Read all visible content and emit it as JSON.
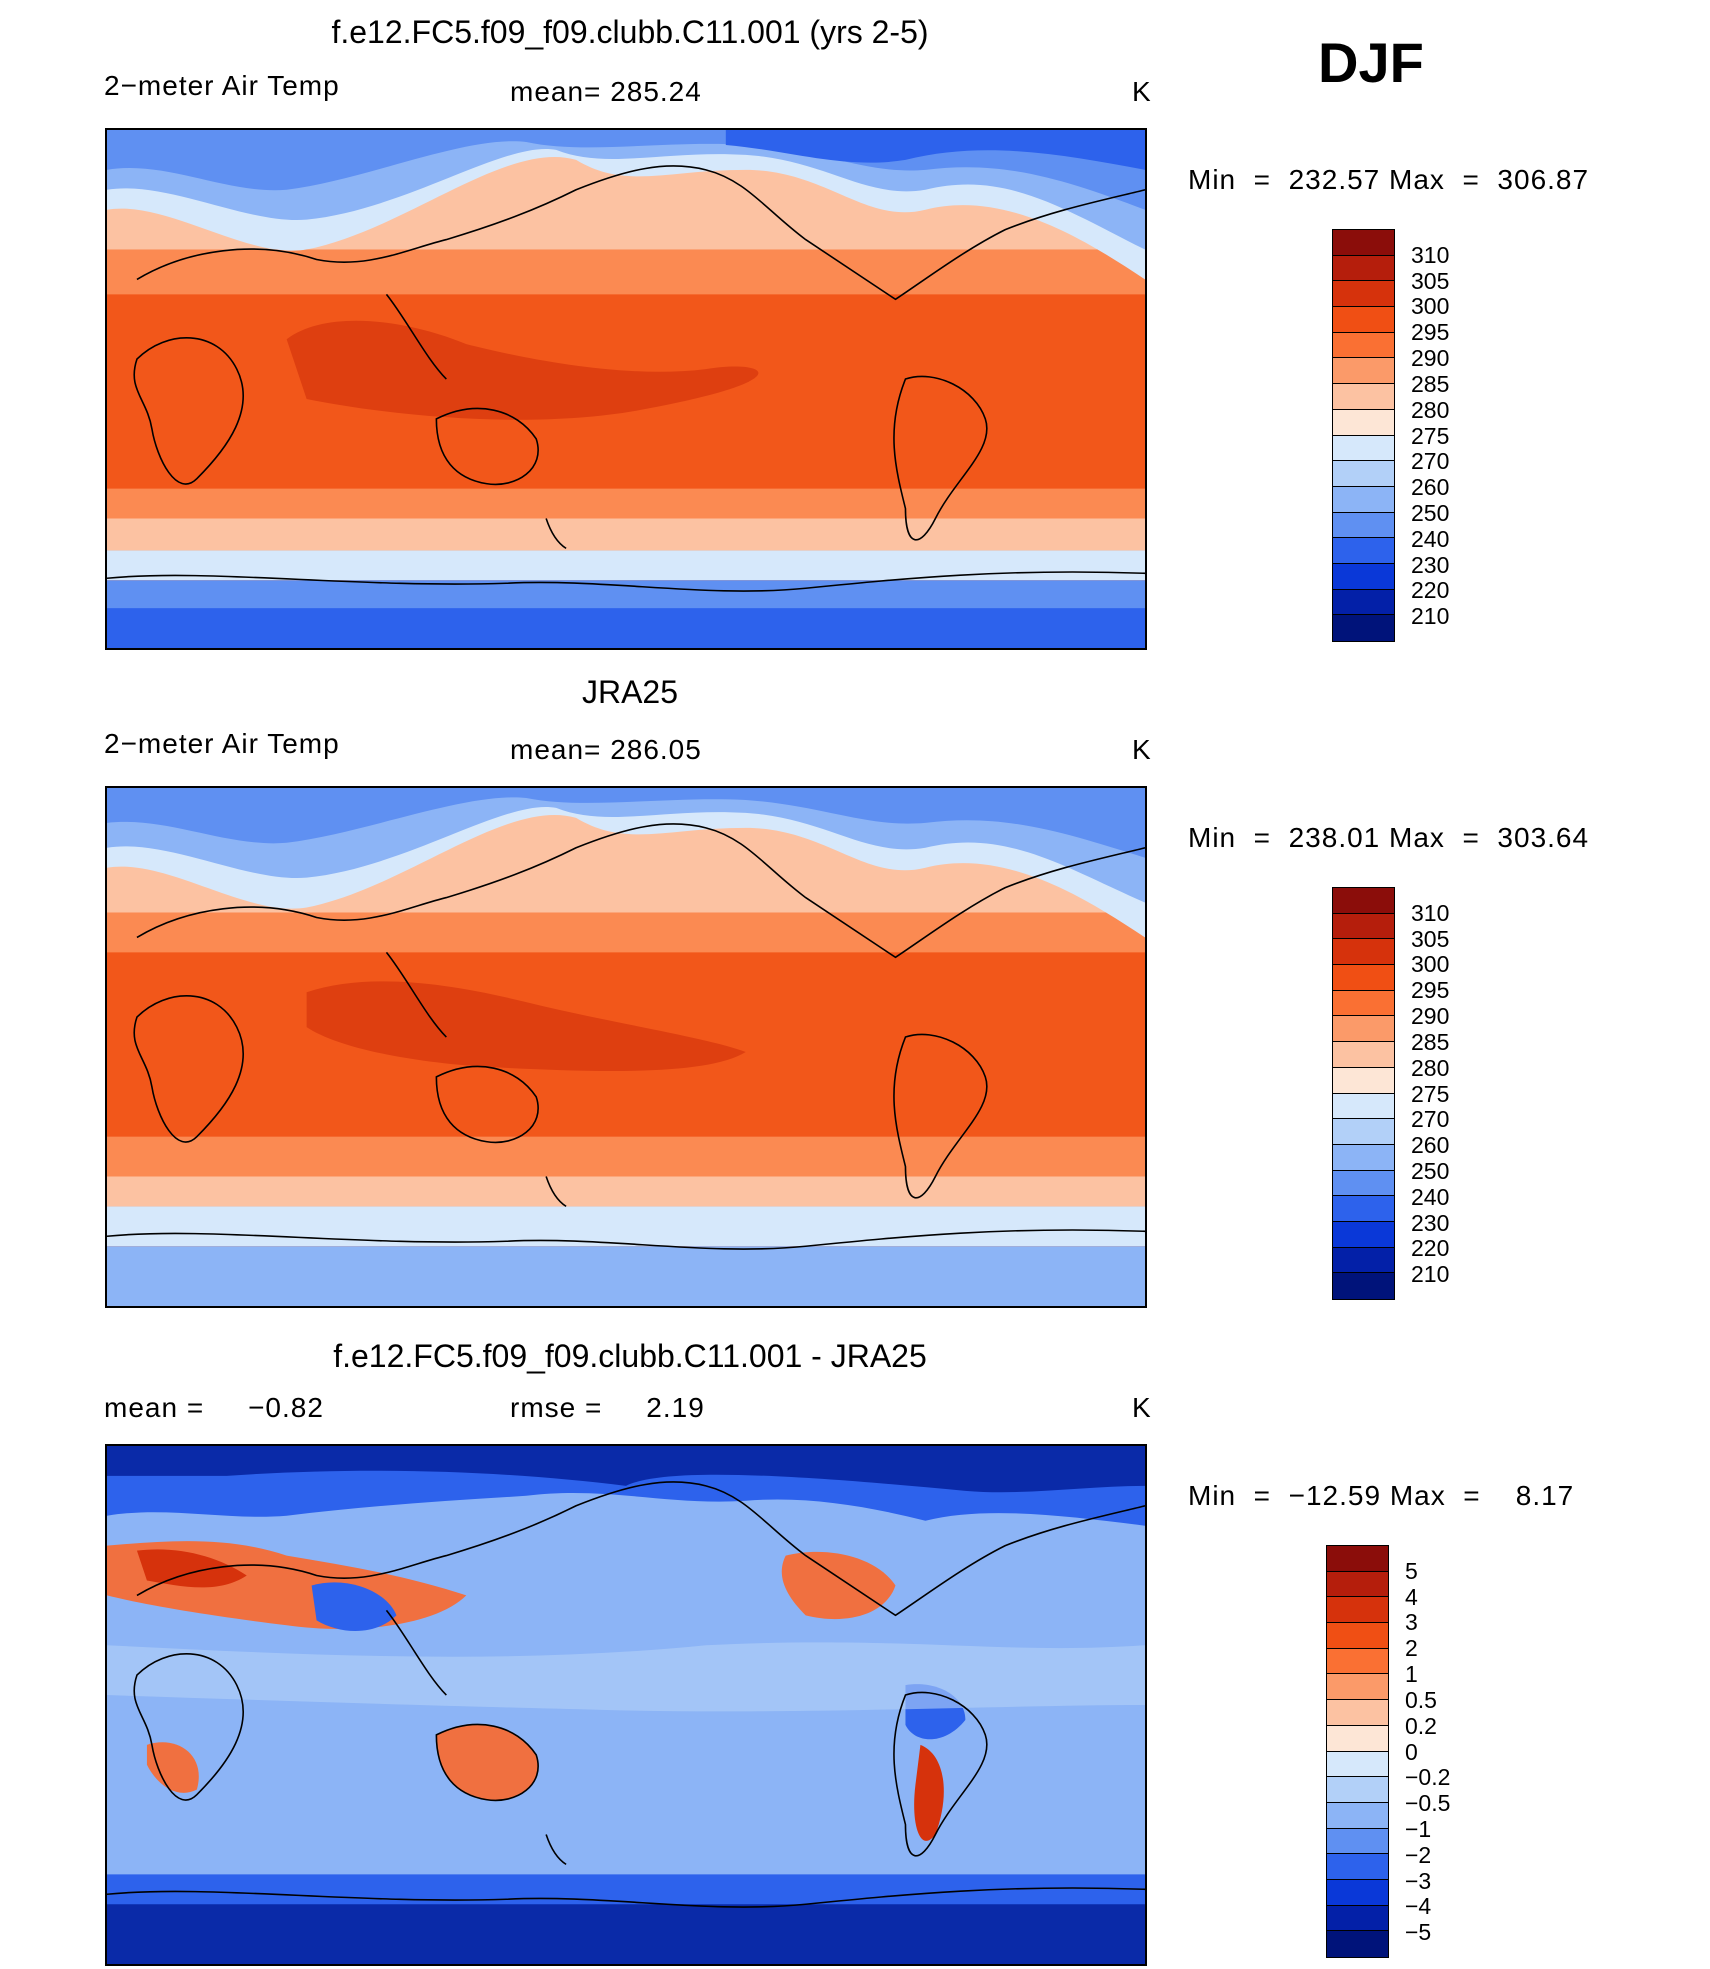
{
  "season": "DJF",
  "units": "K",
  "panel1": {
    "title": "f.e12.FC5.f09_f09.clubb.C11.001 (yrs 2-5)",
    "variable": "2−meter Air Temp",
    "mean_label": "mean=",
    "mean_value": "285.24",
    "min_label": "Min",
    "min_value": "232.57",
    "max_label": "Max",
    "max_value": "306.87"
  },
  "panel2": {
    "title": "JRA25",
    "variable": "2−meter Air Temp",
    "mean_label": "mean=",
    "mean_value": "286.05",
    "min_label": "Min",
    "min_value": "238.01",
    "max_label": "Max",
    "max_value": "303.64"
  },
  "panel3": {
    "title": "f.e12.FC5.f09_f09.clubb.C11.001 - JRA25",
    "mean_label": "mean =",
    "mean_value": "−0.82",
    "rmse_label": "rmse =",
    "rmse_value": "2.19",
    "min_label": "Min",
    "min_value": "−12.59",
    "max_label": "Max",
    "max_value": "8.17"
  },
  "temp_colorbar": {
    "labels": [
      "310",
      "305",
      "300",
      "295",
      "290",
      "285",
      "280",
      "275",
      "270",
      "260",
      "250",
      "240",
      "230",
      "220",
      "210"
    ],
    "colors": [
      "#8b0d0a",
      "#b51e0c",
      "#d6320c",
      "#f04f14",
      "#fa7033",
      "#fb9a69",
      "#fcc2a2",
      "#fde6d6",
      "#d6e8fb",
      "#b2d0f8",
      "#8cb4f6",
      "#5f90f2",
      "#2d62ec",
      "#0a38d8",
      "#0320a8",
      "#00137a"
    ]
  },
  "diff_colorbar": {
    "labels": [
      "5",
      "4",
      "3",
      "2",
      "1",
      "0.5",
      "0.2",
      "0",
      "−0.2",
      "−0.5",
      "−1",
      "−2",
      "−3",
      "−4",
      "−5"
    ],
    "colors": [
      "#8b0d0a",
      "#b51e0c",
      "#d6320c",
      "#f04f14",
      "#fa7033",
      "#fb9a69",
      "#fcc2a2",
      "#fde6d6",
      "#d6e8fb",
      "#b2d0f8",
      "#8cb4f6",
      "#5f90f2",
      "#2d62ec",
      "#0a38d8",
      "#0320a8",
      "#00137a"
    ]
  },
  "map_colors": {
    "tropics": "#f2571a",
    "tropics_deep": "#de3f10",
    "subtropics": "#fb8a52",
    "midlat": "#fcc2a2",
    "mid_cool": "#fde6d6",
    "cool": "#d6e8fb",
    "cold": "#8cb4f6",
    "very_cold": "#5f90f2",
    "polar": "#2d62ec",
    "deep_polar": "#0a2fb8",
    "diff_base": "#8cb4f6",
    "diff_light": "#b2d0f8",
    "diff_warm": "#f07040",
    "diff_hot": "#d6320c",
    "diff_cold": "#2d62ec",
    "diff_deep": "#0a2aa8"
  }
}
